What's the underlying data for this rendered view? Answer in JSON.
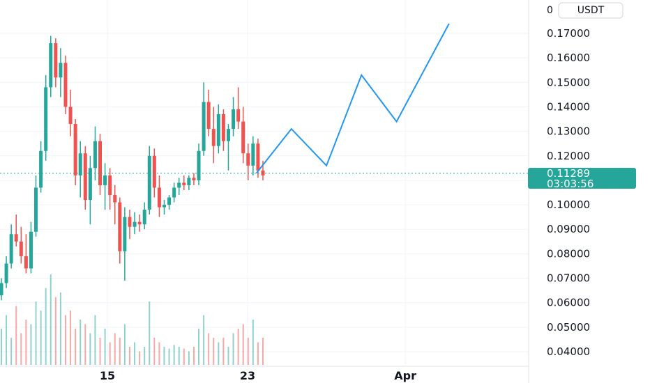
{
  "colors": {
    "up": "#26a69a",
    "down": "#ef5350",
    "projection": "#2196f3",
    "grid": "#f0f3fa",
    "price_line": "#26a69a",
    "axis_border": "#d1d4dc"
  },
  "price_axis": {
    "currency_button": "USDT",
    "currency_prefix": "0",
    "current_price": "0.11289",
    "countdown": "03:03:56"
  },
  "chart_data": {
    "type": "candlestick",
    "ylim": [
      0.035,
      0.18
    ],
    "y_ticks": [
      "0.04000",
      "0.05000",
      "0.06000",
      "0.07000",
      "0.08000",
      "0.09000",
      "0.10000",
      "0.11000",
      "0.12000",
      "0.13000",
      "0.14000",
      "0.15000",
      "0.16000",
      "0.17000"
    ],
    "x_ticks": [
      {
        "label": "15",
        "date": "2024-03-15"
      },
      {
        "label": "23",
        "date": "2024-03-23"
      },
      {
        "label": "Apr",
        "date": "2024-04-01"
      }
    ],
    "candles": [
      [
        0.063,
        0.07,
        0.061,
        0.068
      ],
      [
        0.068,
        0.079,
        0.066,
        0.076
      ],
      [
        0.076,
        0.092,
        0.074,
        0.088
      ],
      [
        0.088,
        0.096,
        0.083,
        0.085
      ],
      [
        0.085,
        0.091,
        0.076,
        0.079
      ],
      [
        0.079,
        0.088,
        0.072,
        0.074
      ],
      [
        0.074,
        0.093,
        0.072,
        0.089
      ],
      [
        0.089,
        0.112,
        0.087,
        0.107
      ],
      [
        0.107,
        0.126,
        0.105,
        0.122
      ],
      [
        0.122,
        0.153,
        0.118,
        0.148
      ],
      [
        0.148,
        0.169,
        0.144,
        0.166
      ],
      [
        0.166,
        0.168,
        0.148,
        0.152
      ],
      [
        0.152,
        0.164,
        0.144,
        0.158
      ],
      [
        0.158,
        0.161,
        0.137,
        0.14
      ],
      [
        0.14,
        0.147,
        0.128,
        0.133
      ],
      [
        0.133,
        0.135,
        0.108,
        0.112
      ],
      [
        0.112,
        0.126,
        0.103,
        0.121
      ],
      [
        0.121,
        0.124,
        0.098,
        0.102
      ],
      [
        0.102,
        0.12,
        0.092,
        0.115
      ],
      [
        0.115,
        0.132,
        0.11,
        0.126
      ],
      [
        0.126,
        0.129,
        0.104,
        0.108
      ],
      [
        0.108,
        0.117,
        0.098,
        0.112
      ],
      [
        0.112,
        0.115,
        0.098,
        0.104
      ],
      [
        0.104,
        0.108,
        0.092,
        0.101
      ],
      [
        0.101,
        0.103,
        0.076,
        0.081
      ],
      [
        0.081,
        0.099,
        0.069,
        0.095
      ],
      [
        0.095,
        0.098,
        0.086,
        0.091
      ],
      [
        0.091,
        0.097,
        0.088,
        0.093
      ],
      [
        0.093,
        0.096,
        0.089,
        0.092
      ],
      [
        0.092,
        0.101,
        0.09,
        0.098
      ],
      [
        0.098,
        0.124,
        0.096,
        0.12
      ],
      [
        0.12,
        0.123,
        0.103,
        0.107
      ],
      [
        0.107,
        0.112,
        0.095,
        0.099
      ],
      [
        0.099,
        0.102,
        0.096,
        0.1
      ],
      [
        0.1,
        0.104,
        0.098,
        0.103
      ],
      [
        0.103,
        0.109,
        0.101,
        0.107
      ],
      [
        0.107,
        0.111,
        0.104,
        0.109
      ],
      [
        0.109,
        0.112,
        0.106,
        0.108
      ],
      [
        0.108,
        0.112,
        0.106,
        0.111
      ],
      [
        0.111,
        0.113,
        0.108,
        0.11
      ],
      [
        0.11,
        0.125,
        0.108,
        0.122
      ],
      [
        0.122,
        0.15,
        0.12,
        0.142
      ],
      [
        0.142,
        0.147,
        0.128,
        0.131
      ],
      [
        0.131,
        0.14,
        0.117,
        0.124
      ],
      [
        0.124,
        0.141,
        0.121,
        0.137
      ],
      [
        0.137,
        0.139,
        0.122,
        0.126
      ],
      [
        0.126,
        0.133,
        0.114,
        0.131
      ],
      [
        0.131,
        0.144,
        0.128,
        0.139
      ],
      [
        0.139,
        0.148,
        0.131,
        0.134
      ],
      [
        0.134,
        0.14,
        0.117,
        0.121
      ],
      [
        0.121,
        0.125,
        0.11,
        0.116
      ],
      [
        0.116,
        0.128,
        0.112,
        0.125
      ],
      [
        0.125,
        0.127,
        0.111,
        0.114
      ],
      [
        0.114,
        0.118,
        0.11,
        0.112
      ]
    ],
    "volumes": [
      0.4,
      0.55,
      0.3,
      0.65,
      0.35,
      0.5,
      0.45,
      0.7,
      0.6,
      0.85,
      1.0,
      0.75,
      0.8,
      0.55,
      0.6,
      0.4,
      0.5,
      0.45,
      0.35,
      0.55,
      0.3,
      0.4,
      0.25,
      0.35,
      0.3,
      0.45,
      0.2,
      0.25,
      0.15,
      0.2,
      0.7,
      0.3,
      0.25,
      0.2,
      0.18,
      0.22,
      0.2,
      0.18,
      0.15,
      0.2,
      0.4,
      0.55,
      0.35,
      0.3,
      0.25,
      0.3,
      0.2,
      0.35,
      0.4,
      0.45,
      0.3,
      0.5,
      0.25,
      0.3
    ],
    "projection": [
      [
        "2024-03-23T12:00",
        0.1129
      ],
      [
        "2024-03-25T12:00",
        0.131
      ],
      [
        "2024-03-27T12:00",
        0.116
      ],
      [
        "2024-03-29T12:00",
        0.153
      ],
      [
        "2024-03-31T12:00",
        0.134
      ],
      [
        "2024-04-03T12:00",
        0.174
      ]
    ]
  }
}
